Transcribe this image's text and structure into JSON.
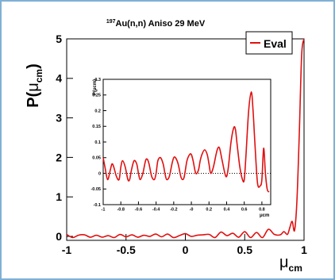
{
  "chart_data": [
    {
      "type": "line",
      "panel": "main",
      "title": "Au(n,n) Aniso 29 MeV",
      "title_superscript": "197",
      "ylabel": "P(μcm)",
      "ylabel_parts": {
        "main": "P(",
        "mu": "μ",
        "sub": "cm",
        "close": ")"
      },
      "xlabel_parts": {
        "mu": "μ",
        "sub": "cm"
      },
      "xlim": [
        -1,
        1
      ],
      "ylim": [
        -0.1,
        5
      ],
      "x_ticks": [
        -1,
        -0.5,
        0,
        0.5,
        1
      ],
      "x_tick_labels": [
        "-1",
        "-0.5",
        "0",
        "0.5",
        "1"
      ],
      "y_ticks": [
        0,
        1,
        2,
        3,
        4,
        5
      ],
      "y_tick_labels": [
        "0",
        "1",
        "2",
        "3",
        "4",
        "5"
      ],
      "legend": {
        "position": "top-right",
        "entries": [
          {
            "name": "Eval",
            "color": "#e01010"
          }
        ]
      },
      "series": [
        {
          "name": "Eval",
          "color": "#e01010",
          "x": [
            -1.0,
            -0.95,
            -0.9,
            -0.85,
            -0.8,
            -0.75,
            -0.7,
            -0.65,
            -0.6,
            -0.55,
            -0.5,
            -0.45,
            -0.4,
            -0.35,
            -0.3,
            -0.25,
            -0.2,
            -0.15,
            -0.1,
            -0.05,
            0.0,
            0.05,
            0.1,
            0.15,
            0.2,
            0.25,
            0.3,
            0.35,
            0.4,
            0.45,
            0.5,
            0.55,
            0.6,
            0.65,
            0.7,
            0.75,
            0.8,
            0.83,
            0.86,
            0.88,
            0.9,
            0.92,
            0.94,
            0.96,
            0.98,
            1.0
          ],
          "y": [
            0.05,
            -0.03,
            0.03,
            0.04,
            -0.02,
            0.03,
            -0.02,
            0.02,
            -0.03,
            0.05,
            -0.01,
            0.04,
            -0.02,
            0.03,
            0.0,
            0.06,
            -0.01,
            0.06,
            -0.03,
            0.02,
            0.07,
            0.0,
            0.03,
            0.04,
            0.05,
            -0.03,
            0.11,
            0.02,
            0.08,
            -0.02,
            0.12,
            -0.03,
            0.1,
            -0.03,
            0.18,
            0.05,
            0.04,
            0.12,
            0.05,
            0.22,
            0.38,
            0.15,
            0.9,
            2.6,
            4.6,
            5.2
          ]
        }
      ]
    },
    {
      "type": "line",
      "panel": "inset",
      "ylabel": "P(μcm)",
      "xlabel": "μcm",
      "xlim": [
        -1,
        0.9
      ],
      "ylim": [
        -0.1,
        0.3
      ],
      "x_ticks": [
        -1,
        -0.8,
        -0.6,
        -0.4,
        -0.2,
        0,
        0.2,
        0.4,
        0.6,
        0.8
      ],
      "x_tick_labels": [
        "-1",
        "-0.8",
        "-0.6",
        "-0.4",
        "-0.2",
        "-0",
        "0.2",
        "0.4",
        "0.6",
        "0.8"
      ],
      "y_ticks": [
        -0.1,
        -0.05,
        0,
        0.05,
        0.1,
        0.15,
        0.2,
        0.25,
        0.3
      ],
      "y_tick_labels": [
        "-0.1",
        "-0.05",
        "0",
        "0.05",
        "0.1",
        "0.15",
        "0.2",
        "0.25",
        "0.3"
      ],
      "zero_line": "dotted",
      "series": [
        {
          "name": "Eval",
          "color": "#e01010",
          "x": [
            -1.0,
            -0.98,
            -0.95,
            -0.92,
            -0.9,
            -0.88,
            -0.85,
            -0.82,
            -0.8,
            -0.78,
            -0.75,
            -0.72,
            -0.7,
            -0.68,
            -0.65,
            -0.62,
            -0.6,
            -0.58,
            -0.55,
            -0.52,
            -0.5,
            -0.48,
            -0.45,
            -0.42,
            -0.4,
            -0.38,
            -0.35,
            -0.32,
            -0.3,
            -0.28,
            -0.25,
            -0.22,
            -0.2,
            -0.18,
            -0.15,
            -0.12,
            -0.1,
            -0.08,
            -0.05,
            -0.02,
            0.0,
            0.02,
            0.05,
            0.08,
            0.1,
            0.12,
            0.15,
            0.18,
            0.2,
            0.22,
            0.25,
            0.28,
            0.3,
            0.32,
            0.35,
            0.38,
            0.4,
            0.42,
            0.45,
            0.48,
            0.5,
            0.52,
            0.55,
            0.58,
            0.6,
            0.62,
            0.65,
            0.68,
            0.7,
            0.72,
            0.75,
            0.78,
            0.8,
            0.82,
            0.84,
            0.86,
            0.88
          ],
          "y": [
            0.05,
            0.02,
            -0.02,
            0.01,
            0.03,
            0.02,
            -0.01,
            -0.02,
            0.02,
            0.04,
            0.02,
            -0.02,
            -0.02,
            0.01,
            0.04,
            0.03,
            0.0,
            -0.02,
            0.0,
            0.04,
            0.045,
            0.03,
            -0.01,
            -0.02,
            0.0,
            0.04,
            0.05,
            0.03,
            0.0,
            -0.02,
            -0.01,
            0.03,
            0.05,
            0.05,
            0.03,
            -0.01,
            -0.02,
            -0.01,
            0.04,
            0.06,
            0.06,
            0.04,
            0.0,
            0.01,
            0.04,
            0.06,
            0.075,
            0.06,
            0.03,
            0.0,
            0.02,
            0.06,
            0.08,
            0.08,
            0.04,
            0.0,
            -0.01,
            0.02,
            0.1,
            0.145,
            0.14,
            0.09,
            0.02,
            -0.02,
            -0.02,
            0.06,
            0.2,
            0.26,
            0.2,
            0.1,
            -0.03,
            -0.04,
            -0.02,
            0.08,
            0.0,
            -0.05,
            -0.06
          ]
        }
      ]
    }
  ]
}
